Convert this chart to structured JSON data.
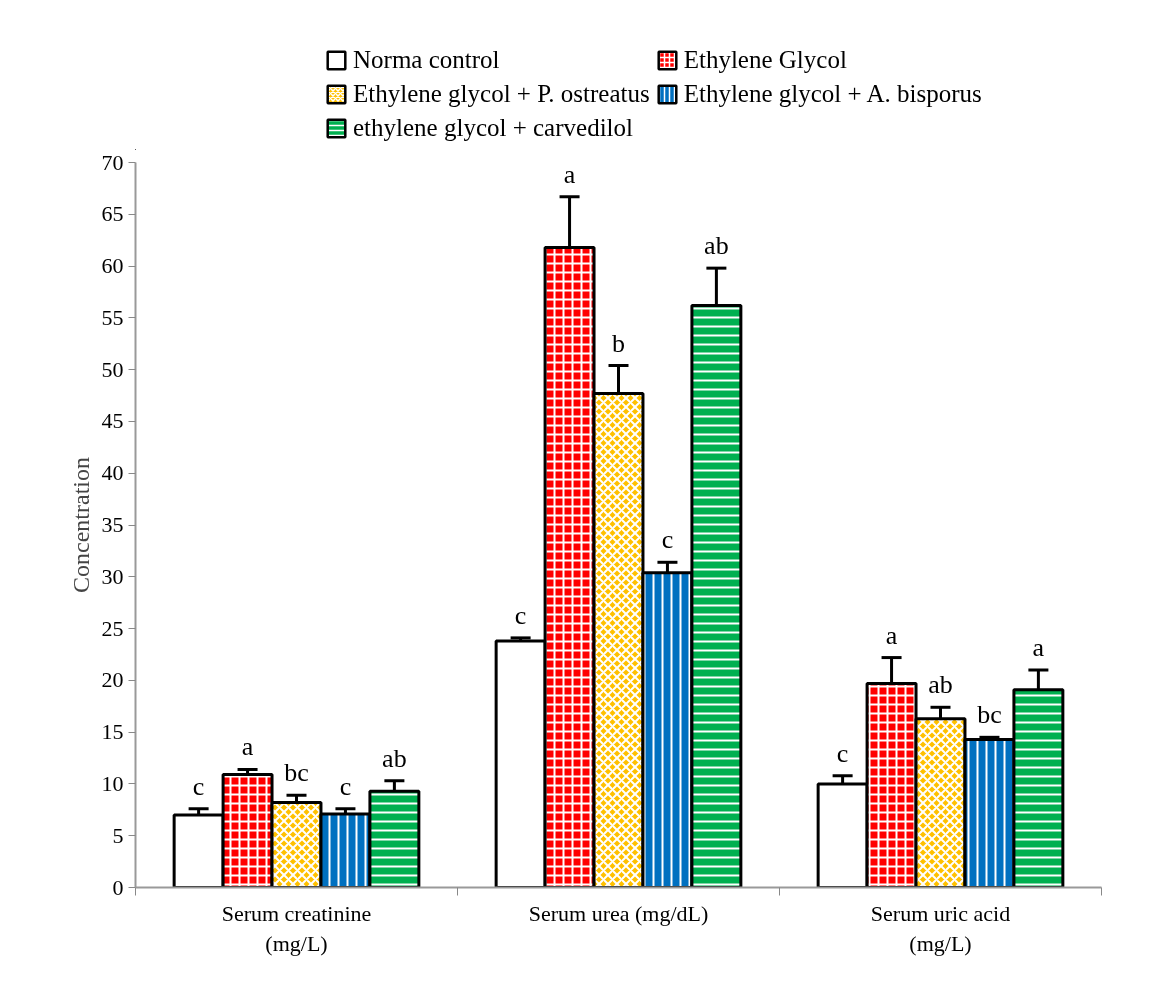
{
  "chart_data": {
    "type": "bar",
    "ylabel": "Concentration",
    "categories": [
      "Serum creatinine (mg/L)",
      "Serum urea (mg/dL)",
      "Serum uric acid (mg/L)"
    ],
    "series": [
      {
        "name": "Norma control",
        "color": "#ffffff",
        "values": [
          7.0,
          23.8,
          10.0
        ],
        "errors": [
          0.6,
          0.3,
          0.8
        ],
        "value_labels": [
          "c",
          "c",
          "c"
        ]
      },
      {
        "name": "Ethylene Glycol",
        "color": "#ff0000",
        "values": [
          10.9,
          61.8,
          19.7
        ],
        "errors": [
          0.5,
          4.9,
          2.5
        ],
        "value_labels": [
          "a",
          "a",
          "a"
        ]
      },
      {
        "name": "Ethylene glycol + P. ostreatus",
        "color": "#ffc000",
        "values": [
          8.2,
          47.7,
          16.3
        ],
        "errors": [
          0.7,
          2.7,
          1.1
        ],
        "value_labels": [
          "bc",
          "b",
          "ab"
        ]
      },
      {
        "name": "Ethylene glycol + A. bisporus",
        "color": "#0070c0",
        "values": [
          7.1,
          30.4,
          14.3
        ],
        "errors": [
          0.5,
          1.0,
          0.2
        ],
        "value_labels": [
          "c",
          "c",
          "bc"
        ]
      },
      {
        "name": "ethylene glycol + carvedilol",
        "color": "#00b050",
        "values": [
          9.3,
          56.2,
          19.1
        ],
        "errors": [
          1.0,
          3.6,
          1.9
        ],
        "value_labels": [
          "ab",
          "ab",
          "a"
        ]
      }
    ],
    "ylim": [
      0,
      70
    ],
    "yticks": [
      0,
      5,
      10,
      15,
      20,
      25,
      30,
      35,
      40,
      45,
      50,
      55,
      60,
      65,
      70
    ],
    "grid": false,
    "legend": "top"
  }
}
